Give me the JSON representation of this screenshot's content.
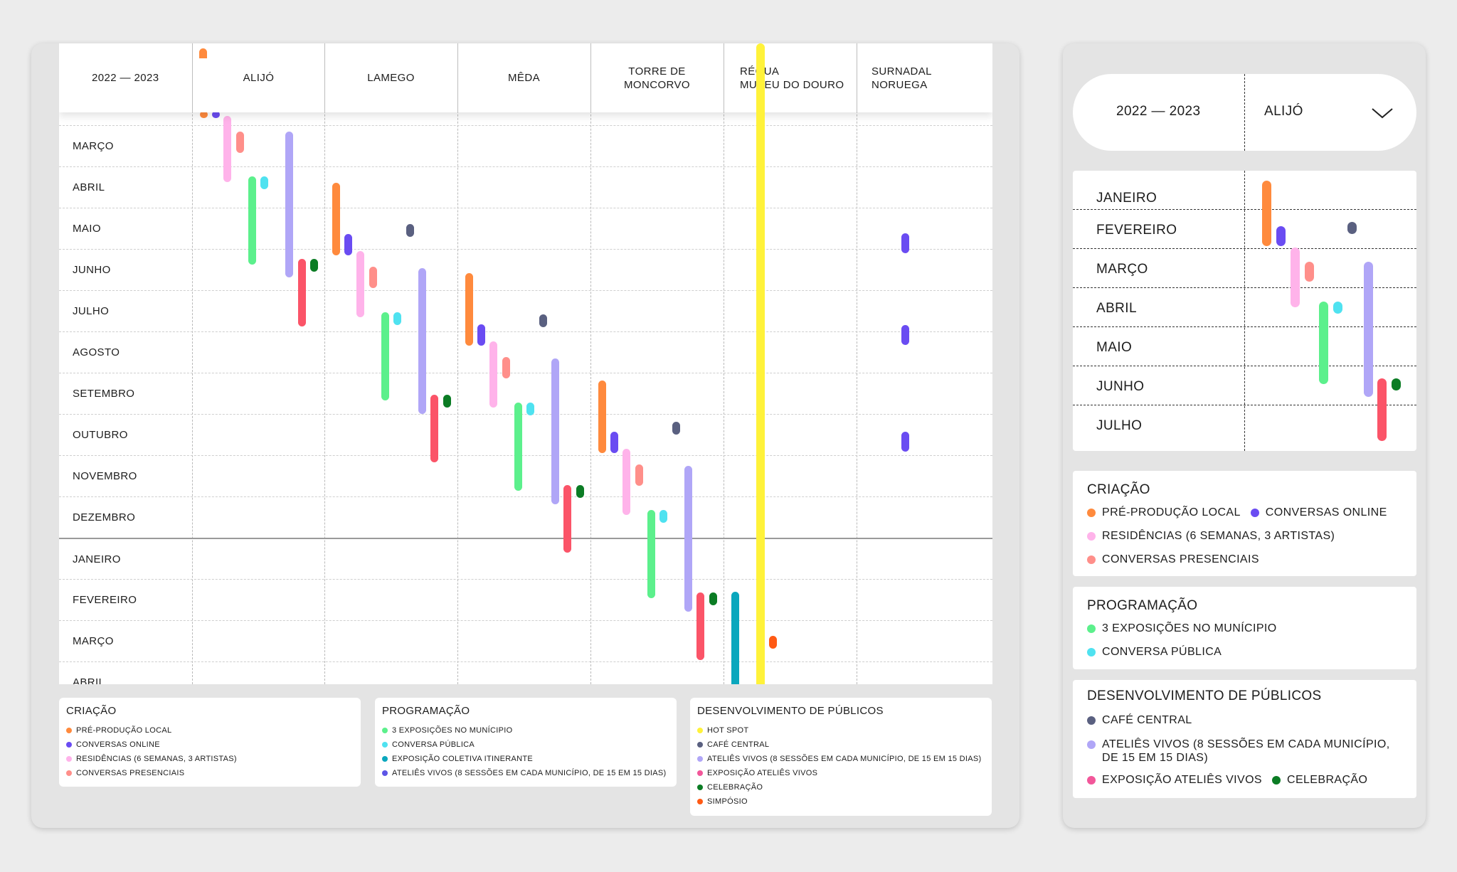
{
  "main": {
    "year_label": "2022 — 2023",
    "headers": [
      {
        "line1": "ALIJÓ",
        "line2": ""
      },
      {
        "line1": "LAMEGO",
        "line2": ""
      },
      {
        "line1": "MÊDA",
        "line2": ""
      },
      {
        "line1": "TORRE DE",
        "line2": "MONCORVO"
      },
      {
        "line1": "RÉGUA",
        "line2": "MUSEU DO DOURO"
      },
      {
        "line1": "SURNADAL",
        "line2": "NORUEGA"
      }
    ],
    "months": [
      "MARÇO",
      "ABRIL",
      "MAIO",
      "JUNHO",
      "JULHO",
      "AGOSTO",
      "SETEMBRO",
      "OUTUBRO",
      "NOVEMBRO",
      "DEZEMBRO",
      "JANEIRO",
      "FEVEREIRO",
      "MARÇO",
      "ABRIL"
    ]
  },
  "legend": [
    {
      "title": "CRIAÇÃO",
      "items": [
        {
          "label": "PRÉ-PRODUÇÃO LOCAL",
          "color": "#ff8a3d"
        },
        {
          "label": "CONVERSAS ONLINE",
          "color": "#6a4cf2"
        },
        {
          "label": "RESIDÊNCIAS  (6 SEMANAS, 3 ARTISTAS)",
          "color": "#ffb3ea"
        },
        {
          "label": "CONVERSAS PRESENCIAIS",
          "color": "#ff8f8a"
        }
      ]
    },
    {
      "title": "PROGRAMAÇÃO",
      "items": [
        {
          "label": "3 EXPOSIÇÕES NO MUNÍCIPIO",
          "color": "#5cf08c"
        },
        {
          "label": "CONVERSA PÚBLICA",
          "color": "#4fe2f0"
        },
        {
          "label": "EXPOSIÇÃO COLETIVA ITINERANTE",
          "color": "#0aa7bd"
        },
        {
          "label": "ATELIÊS VIVOS (8 SESSÕES EM CADA MUNICÍPIO, DE 15 EM 15 DIAS)",
          "color": "#5d55e6"
        }
      ]
    },
    {
      "title": "DESENVOLVIMENTO DE PÚBLICOS",
      "items": [
        {
          "label": "HOT SPOT",
          "color": "#fff23a"
        },
        {
          "label": "CAFÉ CENTRAL",
          "color": "#5a6080"
        },
        {
          "label": "ATELIÊS VIVOS (8 SESSÕES EM CADA MUNICÍPIO, DE 15 EM 15 DIAS)",
          "color": "#b0a6f7"
        },
        {
          "label": "EXPOSIÇÃO ATELIÊS VIVOS",
          "color": "#f2579a"
        },
        {
          "label": "CELEBRAÇÃO",
          "color": "#0b7c24"
        },
        {
          "label": "SIMPÓSIO",
          "color": "#ff5a14"
        }
      ]
    }
  ],
  "mobile": {
    "year_label": "2022 — 2023",
    "municipality": "ALIJÓ",
    "months": [
      "JANEIRO",
      "FEVEREIRO",
      "MARÇO",
      "ABRIL",
      "MAIO",
      "JUNHO",
      "JULHO"
    ],
    "legend": [
      {
        "title": "CRIAÇÃO",
        "lines": [
          [
            {
              "label": "PRÉ-PRODUÇÃO LOCAL",
              "color": "#ff8a3d"
            },
            {
              "label": "CONVERSAS ONLINE",
              "color": "#6a4cf2"
            }
          ],
          [
            {
              "label": "RESIDÊNCIAS  (6 SEMANAS, 3 ARTISTAS)",
              "color": "#ffb3ea"
            }
          ],
          [
            {
              "label": "CONVERSAS PRESENCIAIS",
              "color": "#ff8f8a"
            }
          ]
        ]
      },
      {
        "title": "PROGRAMAÇÃO",
        "lines": [
          [
            {
              "label": "3 EXPOSIÇÕES NO MUNÍCIPIO",
              "color": "#5cf08c"
            }
          ],
          [
            {
              "label": "CONVERSA PÚBLICA",
              "color": "#4fe2f0"
            }
          ]
        ]
      },
      {
        "title": "DESENVOLVIMENTO DE PÚBLICOS",
        "lines": [
          [
            {
              "label": "CAFÉ CENTRAL",
              "color": "#5a6080"
            }
          ],
          [
            {
              "label": "ATELIÊS VIVOS (8 SESSÕES EM CADA MUNICÍPIO,",
              "color": "#b0a6f7"
            }
          ],
          [
            {
              "label": "DE 15 EM 15 DIAS)",
              "color": ""
            }
          ],
          [
            {
              "label": "EXPOSIÇÃO ATELIÊS VIVOS",
              "color": "#f2579a"
            },
            {
              "label": "CELEBRAÇÃO",
              "color": "#0b7c24"
            }
          ]
        ]
      }
    ]
  }
}
